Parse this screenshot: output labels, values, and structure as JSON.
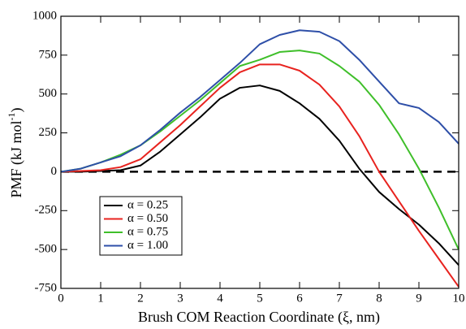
{
  "chart_data": {
    "type": "line",
    "xlabel": "Brush COM Reaction Coordinate (ξ, nm)",
    "ylabel": "PMF (kJ mol",
    "ylabel_sup": "-1",
    "ylabel_end": ")",
    "x": [
      0,
      0.5,
      1,
      1.5,
      2,
      2.5,
      3,
      3.5,
      4,
      4.5,
      5,
      5.5,
      6,
      6.5,
      7,
      7.5,
      8,
      8.5,
      9,
      9.5,
      10
    ],
    "series": [
      {
        "name": "α = 0.25",
        "color": "#000000",
        "values": [
          0,
          0,
          5,
          10,
          40,
          130,
          240,
          350,
          470,
          540,
          555,
          520,
          440,
          340,
          200,
          20,
          -130,
          -240,
          -340,
          -460,
          -600
        ]
      },
      {
        "name": "α = 0.50",
        "color": "#e8231f",
        "values": [
          0,
          5,
          10,
          30,
          80,
          190,
          300,
          420,
          540,
          640,
          690,
          690,
          650,
          560,
          420,
          230,
          0,
          -190,
          -380,
          -560,
          -740
        ]
      },
      {
        "name": "α = 0.75",
        "color": "#3fbf2a",
        "values": [
          0,
          20,
          60,
          110,
          170,
          260,
          360,
          460,
          570,
          680,
          720,
          770,
          780,
          760,
          680,
          580,
          430,
          240,
          20,
          -230,
          -500
        ]
      },
      {
        "name": "α = 1.00",
        "color": "#2e4fa8",
        "values": [
          0,
          20,
          60,
          100,
          170,
          270,
          380,
          480,
          590,
          700,
          820,
          880,
          910,
          900,
          840,
          720,
          580,
          440,
          410,
          320,
          180
        ]
      }
    ],
    "hline": 0,
    "xlim": [
      0,
      10
    ],
    "xticks": [
      0,
      1,
      2,
      3,
      4,
      5,
      6,
      7,
      8,
      9,
      10
    ],
    "ylim": [
      -750,
      1000
    ],
    "yticks": [
      -750,
      -500,
      -250,
      0,
      250,
      500,
      750,
      1000
    ],
    "legend": "lower left"
  }
}
